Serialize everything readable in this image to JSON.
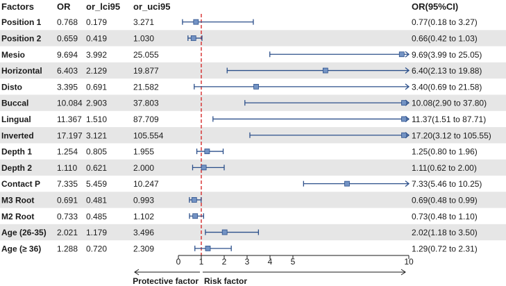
{
  "chart_data": {
    "type": "forest",
    "columns": [
      "Factors",
      "OR",
      "or_lci95",
      "or_uci95",
      "OR(95%CI)"
    ],
    "rows": [
      {
        "factor": "Position 1",
        "or": "0.768",
        "lci": "0.179",
        "uci": "3.271",
        "ci_text": "0.77(0.18 to 3.27)",
        "or_v": 0.768,
        "lci_v": 0.179,
        "uci_v": 3.271
      },
      {
        "factor": "Position 2",
        "or": "0.659",
        "lci": "0.419",
        "uci": "1.030",
        "ci_text": "0.66(0.42 to 1.03)",
        "or_v": 0.659,
        "lci_v": 0.419,
        "uci_v": 1.03
      },
      {
        "factor": "Mesio",
        "or": "9.694",
        "lci": "3.992",
        "uci": "25.055",
        "ci_text": "9.69(3.99 to 25.05)",
        "or_v": 9.694,
        "lci_v": 3.992,
        "uci_v": 25.055
      },
      {
        "factor": "Horizontal",
        "or": "6.403",
        "lci": "2.129",
        "uci": "19.877",
        "ci_text": "6.40(2.13 to 19.88)",
        "or_v": 6.403,
        "lci_v": 2.129,
        "uci_v": 19.877
      },
      {
        "factor": "Disto",
        "or": "3.395",
        "lci": "0.691",
        "uci": "21.582",
        "ci_text": "3.40(0.69 to 21.58)",
        "or_v": 3.395,
        "lci_v": 0.691,
        "uci_v": 21.582
      },
      {
        "factor": "Buccal",
        "or": "10.084",
        "lci": "2.903",
        "uci": "37.803",
        "ci_text": "10.08(2.90 to 37.80)",
        "or_v": 10.084,
        "lci_v": 2.903,
        "uci_v": 37.803
      },
      {
        "factor": "Lingual",
        "or": "11.367",
        "lci": "1.510",
        "uci": "87.709",
        "ci_text": "11.37(1.51 to 87.71)",
        "or_v": 11.367,
        "lci_v": 1.51,
        "uci_v": 87.709
      },
      {
        "factor": "Inverted",
        "or": "17.197",
        "lci": "3.121",
        "uci": "105.554",
        "ci_text": "17.20(3.12 to 105.55)",
        "or_v": 17.197,
        "lci_v": 3.121,
        "uci_v": 105.554
      },
      {
        "factor": "Depth 1",
        "or": "1.254",
        "lci": "0.805",
        "uci": "1.955",
        "ci_text": "1.25(0.80 to 1.96)",
        "or_v": 1.254,
        "lci_v": 0.805,
        "uci_v": 1.955
      },
      {
        "factor": "Depth 2",
        "or": "1.110",
        "lci": "0.621",
        "uci": "2.000",
        "ci_text": "1.11(0.62 to 2.00)",
        "or_v": 1.11,
        "lci_v": 0.621,
        "uci_v": 2.0
      },
      {
        "factor": "Contact P",
        "or": "7.335",
        "lci": "5.459",
        "uci": "10.247",
        "ci_text": "7.33(5.46 to 10.25)",
        "or_v": 7.335,
        "lci_v": 5.459,
        "uci_v": 10.247
      },
      {
        "factor": "M3 Root",
        "or": "0.691",
        "lci": "0.481",
        "uci": "0.993",
        "ci_text": "0.69(0.48 to 0.99)",
        "or_v": 0.691,
        "lci_v": 0.481,
        "uci_v": 0.993
      },
      {
        "factor": "M2 Root",
        "or": "0.733",
        "lci": "0.485",
        "uci": "1.102",
        "ci_text": "0.73(0.48 to 1.10)",
        "or_v": 0.733,
        "lci_v": 0.485,
        "uci_v": 1.102
      },
      {
        "factor": "Age (26-35)",
        "or": "2.021",
        "lci": "1.179",
        "uci": "3.496",
        "ci_text": "2.02(1.18 to 3.50)",
        "or_v": 2.021,
        "lci_v": 1.179,
        "uci_v": 3.496
      },
      {
        "factor": "Age (≥ 36)",
        "or": "1.288",
        "lci": "0.720",
        "uci": "2.309",
        "ci_text": "1.29(0.72 to 2.31)",
        "or_v": 1.288,
        "lci_v": 0.72,
        "uci_v": 2.309
      }
    ],
    "x_ticks": [
      "0",
      "1",
      "2",
      "3",
      "4",
      "5",
      "10"
    ],
    "xlim": [
      0,
      10
    ],
    "reference_line": 1,
    "protective_label": "Protective factor",
    "risk_label": "Risk factor",
    "colors": {
      "ci": "#2b4f8a",
      "marker": "#7393c4",
      "ref": "#d62a2a",
      "stripe": "#e6e6e6",
      "text": "#1a1a1a"
    }
  }
}
